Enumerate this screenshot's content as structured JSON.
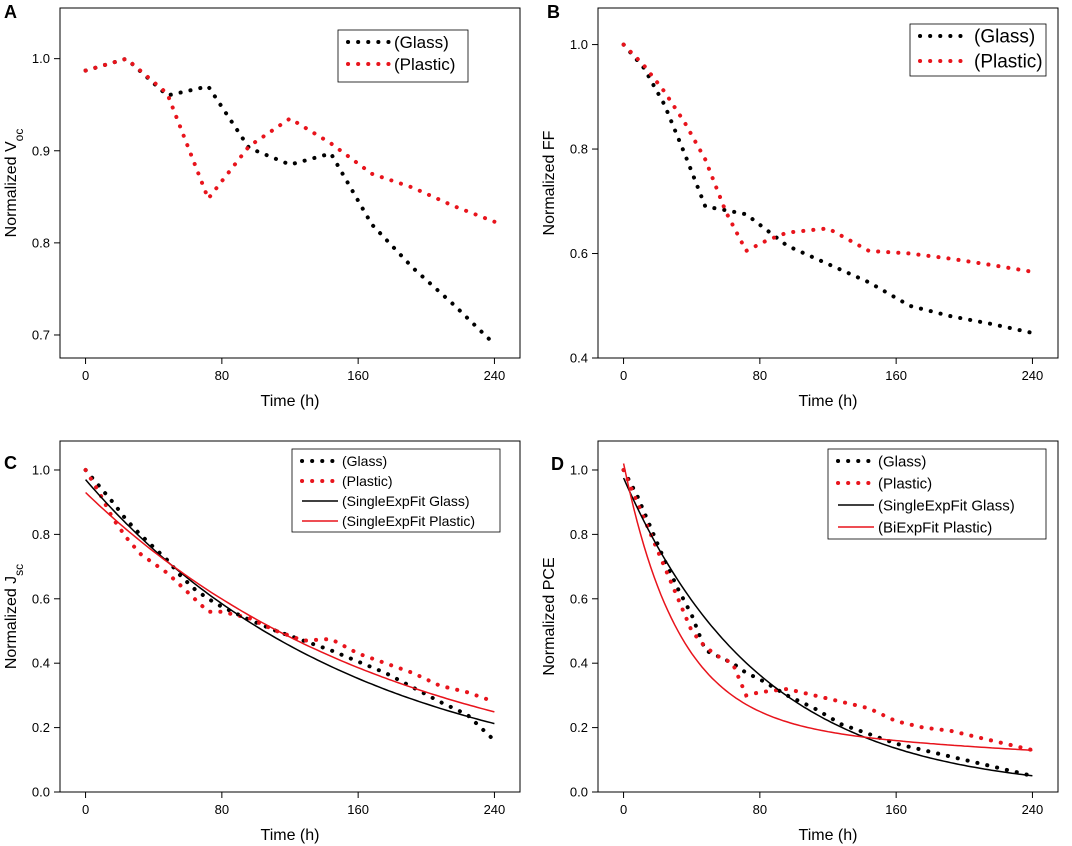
{
  "chart_data": [
    {
      "panel_label": "A",
      "type": "line",
      "xlabel": "Time (h)",
      "ylabel": {
        "main": "Normalized V",
        "sub": "oc"
      },
      "xlim": [
        -15,
        255
      ],
      "ylim": [
        0.675,
        1.055
      ],
      "xticks": [
        0,
        80,
        160,
        240
      ],
      "yticks": [
        0.7,
        0.8,
        0.9,
        1.0
      ],
      "legend": {
        "position": "top-right"
      },
      "series": [
        {
          "name": "(Glass)",
          "color": "#000000",
          "style": "dot",
          "x": [
            0,
            24,
            48,
            72,
            96,
            120,
            144,
            168,
            192,
            216,
            240
          ],
          "y": [
            0.987,
            1.0,
            0.96,
            0.97,
            0.903,
            0.885,
            0.897,
            0.82,
            0.773,
            0.733,
            0.69
          ]
        },
        {
          "name": "(Plastic)",
          "color": "#e8141c",
          "style": "dot",
          "x": [
            0,
            24,
            48,
            72,
            96,
            120,
            144,
            168,
            192,
            216,
            240
          ],
          "y": [
            0.987,
            1.0,
            0.962,
            0.848,
            0.905,
            0.935,
            0.908,
            0.875,
            0.86,
            0.84,
            0.823
          ]
        }
      ]
    },
    {
      "panel_label": "B",
      "type": "line",
      "xlabel": "Time (h)",
      "ylabel": {
        "main": "Normalized FF",
        "sub": ""
      },
      "xlim": [
        -15,
        255
      ],
      "ylim": [
        0.4,
        1.07
      ],
      "xticks": [
        0,
        80,
        160,
        240
      ],
      "yticks": [
        0.4,
        0.6,
        0.8,
        1.0
      ],
      "legend": {
        "position": "top-right"
      },
      "series": [
        {
          "name": "(Glass)",
          "color": "#000000",
          "style": "dot",
          "x": [
            0,
            12,
            24,
            36,
            48,
            60,
            72,
            96,
            120,
            144,
            168,
            192,
            216,
            240
          ],
          "y": [
            1.0,
            0.955,
            0.885,
            0.79,
            0.69,
            0.683,
            0.675,
            0.615,
            0.58,
            0.545,
            0.5,
            0.48,
            0.465,
            0.448
          ]
        },
        {
          "name": "(Plastic)",
          "color": "#e8141c",
          "style": "dot",
          "x": [
            0,
            12,
            24,
            36,
            48,
            60,
            72,
            84,
            96,
            120,
            144,
            168,
            192,
            216,
            240
          ],
          "y": [
            1.0,
            0.96,
            0.91,
            0.85,
            0.78,
            0.68,
            0.605,
            0.625,
            0.64,
            0.648,
            0.605,
            0.6,
            0.59,
            0.578,
            0.565
          ]
        }
      ]
    },
    {
      "panel_label": "C",
      "type": "line",
      "xlabel": "Time (h)",
      "ylabel": {
        "main": "Normalized J",
        "sub": "sc"
      },
      "xlim": [
        -15,
        255
      ],
      "ylim": [
        0.0,
        1.09
      ],
      "xticks": [
        0,
        80,
        160,
        240
      ],
      "yticks": [
        0.0,
        0.2,
        0.4,
        0.6,
        0.8,
        1.0
      ],
      "legend": {
        "position": "top-right"
      },
      "series": [
        {
          "name": "(Glass)",
          "color": "#000000",
          "style": "dot",
          "x": [
            0,
            8,
            16,
            24,
            32,
            40,
            48,
            56,
            64,
            72,
            80,
            96,
            112,
            128,
            144,
            160,
            176,
            192,
            208,
            224,
            240
          ],
          "y": [
            1.0,
            0.95,
            0.9,
            0.845,
            0.8,
            0.76,
            0.72,
            0.67,
            0.63,
            0.6,
            0.575,
            0.535,
            0.5,
            0.47,
            0.44,
            0.405,
            0.37,
            0.325,
            0.28,
            0.24,
            0.16
          ]
        },
        {
          "name": "(Plastic)",
          "color": "#e8141c",
          "style": "dot",
          "x": [
            0,
            8,
            16,
            24,
            32,
            40,
            48,
            56,
            64,
            72,
            80,
            96,
            112,
            128,
            144,
            160,
            176,
            192,
            208,
            224,
            240
          ],
          "y": [
            1.0,
            0.93,
            0.85,
            0.79,
            0.74,
            0.71,
            0.68,
            0.64,
            0.6,
            0.56,
            0.56,
            0.54,
            0.5,
            0.47,
            0.475,
            0.43,
            0.4,
            0.37,
            0.33,
            0.31,
            0.28
          ]
        },
        {
          "name": "(SingleExpFit Glass)",
          "color": "#000000",
          "style": "solid",
          "fit": {
            "a": 0.97,
            "tau": 158
          }
        },
        {
          "name": "(SingleExpFit Plastic)",
          "color": "#e8141c",
          "style": "solid",
          "fit": {
            "a": 0.93,
            "tau": 182
          }
        }
      ]
    },
    {
      "panel_label": "D",
      "type": "line",
      "xlabel": "Time (h)",
      "ylabel": {
        "main": "Normalized PCE",
        "sub": ""
      },
      "xlim": [
        -15,
        255
      ],
      "ylim": [
        0.0,
        1.09
      ],
      "xticks": [
        0,
        80,
        160,
        240
      ],
      "yticks": [
        0.0,
        0.2,
        0.4,
        0.6,
        0.8,
        1.0
      ],
      "legend": {
        "position": "top-right"
      },
      "series": [
        {
          "name": "(Glass)",
          "color": "#000000",
          "style": "dot",
          "x": [
            0,
            8,
            16,
            24,
            32,
            40,
            48,
            56,
            64,
            72,
            80,
            96,
            112,
            128,
            144,
            160,
            176,
            192,
            208,
            224,
            240
          ],
          "y": [
            1.0,
            0.92,
            0.82,
            0.72,
            0.63,
            0.55,
            0.44,
            0.42,
            0.4,
            0.37,
            0.35,
            0.3,
            0.26,
            0.21,
            0.18,
            0.15,
            0.13,
            0.11,
            0.09,
            0.07,
            0.05
          ]
        },
        {
          "name": "(Plastic)",
          "color": "#e8141c",
          "style": "dot",
          "x": [
            0,
            8,
            16,
            24,
            32,
            40,
            48,
            56,
            64,
            72,
            80,
            96,
            112,
            128,
            144,
            160,
            176,
            192,
            208,
            224,
            240
          ],
          "y": [
            1.0,
            0.9,
            0.8,
            0.7,
            0.6,
            0.5,
            0.45,
            0.42,
            0.4,
            0.3,
            0.31,
            0.32,
            0.3,
            0.28,
            0.26,
            0.22,
            0.2,
            0.19,
            0.17,
            0.15,
            0.13
          ]
        },
        {
          "name": "(SingleExpFit Glass)",
          "color": "#000000",
          "style": "solid",
          "fit": {
            "a": 0.975,
            "tau": 81
          }
        },
        {
          "name": "(BiExpFit Plastic)",
          "color": "#e8141c",
          "style": "solid",
          "fit": {
            "a1": 0.8,
            "tau1": 32,
            "a2": 0.22,
            "tau2": 450
          }
        }
      ]
    }
  ]
}
